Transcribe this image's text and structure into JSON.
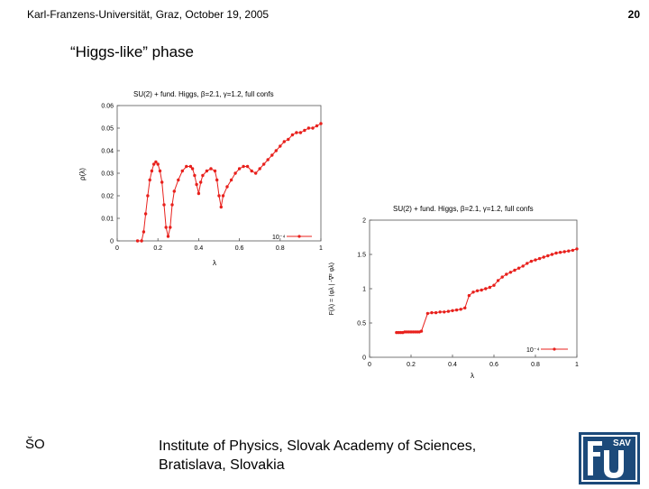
{
  "header": {
    "left_text": "Karl-Franzens-Universität, Graz, October 19, 2005",
    "page_number": "20"
  },
  "slide_title": "“Higgs-like” phase",
  "footer": {
    "initials": "ŠO",
    "institute_line1": "Institute of Physics, Slovak Academy of Sciences,",
    "institute_line2": "Bratislava, Slovakia",
    "logo_text": "SAV"
  },
  "colors": {
    "series": "#e8201c",
    "logo_bg": "#1c4a7a",
    "logo_fg": "#ffffff"
  },
  "chart_data": [
    {
      "type": "line",
      "title": "SU(2) + fund. Higgs, β=2.1, γ=1.2, full confs",
      "xlabel": "λ",
      "ylabel": "ρ(λ)",
      "xlim": [
        0,
        1
      ],
      "ylim": [
        0,
        0.06
      ],
      "xticks": [
        "0",
        "0.2",
        "0.4",
        "0.6",
        "0.8",
        "1"
      ],
      "yticks": [
        "0",
        "0.01",
        "0.02",
        "0.03",
        "0.04",
        "0.05",
        "0.06"
      ],
      "legend": "10⁻⁴",
      "series": [
        {
          "name": "10⁻⁴",
          "x": [
            0.1,
            0.12,
            0.13,
            0.14,
            0.15,
            0.16,
            0.17,
            0.18,
            0.19,
            0.2,
            0.21,
            0.22,
            0.23,
            0.24,
            0.25,
            0.26,
            0.27,
            0.28,
            0.3,
            0.32,
            0.34,
            0.36,
            0.37,
            0.38,
            0.39,
            0.4,
            0.41,
            0.42,
            0.44,
            0.46,
            0.48,
            0.49,
            0.5,
            0.51,
            0.52,
            0.54,
            0.56,
            0.58,
            0.6,
            0.62,
            0.64,
            0.66,
            0.68,
            0.7,
            0.72,
            0.74,
            0.76,
            0.78,
            0.8,
            0.82,
            0.84,
            0.86,
            0.88,
            0.9,
            0.92,
            0.94,
            0.96,
            0.98,
            1.0
          ],
          "y": [
            0.0,
            0.0,
            0.004,
            0.012,
            0.02,
            0.027,
            0.031,
            0.034,
            0.035,
            0.034,
            0.031,
            0.026,
            0.016,
            0.006,
            0.002,
            0.006,
            0.016,
            0.022,
            0.027,
            0.031,
            0.033,
            0.033,
            0.032,
            0.029,
            0.025,
            0.021,
            0.026,
            0.029,
            0.031,
            0.032,
            0.031,
            0.027,
            0.02,
            0.015,
            0.02,
            0.024,
            0.027,
            0.03,
            0.032,
            0.033,
            0.033,
            0.031,
            0.03,
            0.032,
            0.034,
            0.036,
            0.038,
            0.04,
            0.042,
            0.044,
            0.045,
            0.047,
            0.048,
            0.048,
            0.049,
            0.05,
            0.05,
            0.051,
            0.052
          ]
        }
      ]
    },
    {
      "type": "line",
      "title": "SU(2) + fund. Higgs, β=2.1, γ=1.2, full confs",
      "xlabel": "λ",
      "ylabel": "F(λ) = ⟨φλ | -∇² φλ⟩",
      "xlim": [
        0,
        1
      ],
      "ylim": [
        0,
        2
      ],
      "xticks": [
        "0",
        "0.2",
        "0.4",
        "0.6",
        "0.8",
        "1"
      ],
      "yticks": [
        "0",
        "0.5",
        "1",
        "1.5",
        "2"
      ],
      "legend": "10⁻⁴",
      "series": [
        {
          "name": "10⁻⁴",
          "x": [
            0.13,
            0.14,
            0.15,
            0.16,
            0.17,
            0.18,
            0.19,
            0.2,
            0.21,
            0.22,
            0.23,
            0.24,
            0.25,
            0.28,
            0.3,
            0.32,
            0.34,
            0.36,
            0.38,
            0.4,
            0.42,
            0.44,
            0.46,
            0.48,
            0.5,
            0.52,
            0.54,
            0.56,
            0.58,
            0.6,
            0.62,
            0.64,
            0.66,
            0.68,
            0.7,
            0.72,
            0.74,
            0.76,
            0.78,
            0.8,
            0.82,
            0.84,
            0.86,
            0.88,
            0.9,
            0.92,
            0.94,
            0.96,
            0.98,
            1.0
          ],
          "y": [
            0.36,
            0.36,
            0.36,
            0.36,
            0.37,
            0.37,
            0.37,
            0.37,
            0.37,
            0.37,
            0.37,
            0.37,
            0.38,
            0.64,
            0.65,
            0.65,
            0.66,
            0.66,
            0.67,
            0.68,
            0.69,
            0.7,
            0.72,
            0.9,
            0.95,
            0.97,
            0.98,
            1.0,
            1.02,
            1.05,
            1.12,
            1.17,
            1.21,
            1.24,
            1.27,
            1.3,
            1.33,
            1.37,
            1.4,
            1.42,
            1.44,
            1.46,
            1.48,
            1.5,
            1.52,
            1.53,
            1.54,
            1.55,
            1.56,
            1.58
          ]
        }
      ]
    }
  ]
}
